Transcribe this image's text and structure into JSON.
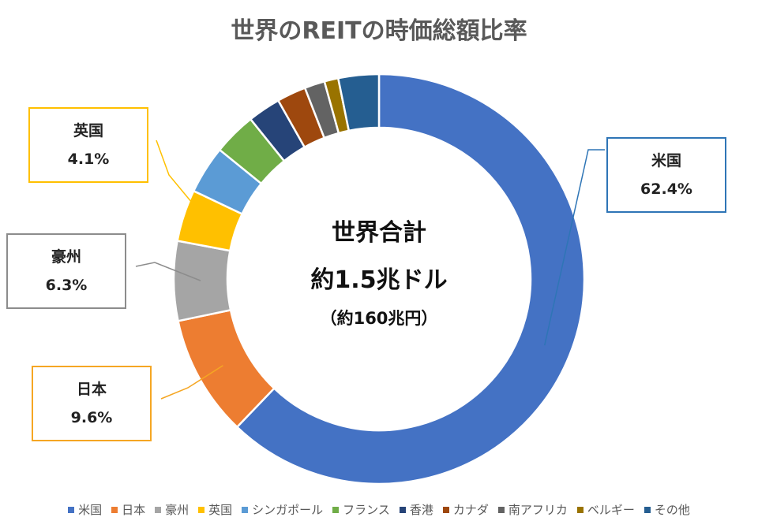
{
  "chart_data": {
    "type": "pie",
    "donut": true,
    "title": "世界のREITの時価総額比率",
    "center_text": {
      "line1": "世界合計",
      "line2": "約1.5兆ドル",
      "line3": "（約160兆円）"
    },
    "slices": [
      {
        "name": "米国",
        "value": 62.4,
        "color": "#4472C4",
        "label": "62.4%"
      },
      {
        "name": "日本",
        "value": 9.6,
        "color": "#ED7D31",
        "label": "9.6%"
      },
      {
        "name": "豪州",
        "value": 6.3,
        "color": "#A5A5A5",
        "label": "6.3%"
      },
      {
        "name": "英国",
        "value": 4.1,
        "color": "#FFC000",
        "label": "4.1%"
      },
      {
        "name": "シンガポール",
        "value": 3.8,
        "color": "#5B9BD5"
      },
      {
        "name": "フランス",
        "value": 3.4,
        "color": "#70AD47"
      },
      {
        "name": "香港",
        "value": 2.6,
        "color": "#264478"
      },
      {
        "name": "カナダ",
        "value": 2.3,
        "color": "#9E480E"
      },
      {
        "name": "南アフリカ",
        "value": 1.6,
        "color": "#636363"
      },
      {
        "name": "ベルギー",
        "value": 1.1,
        "color": "#997300"
      },
      {
        "name": "その他",
        "value": 3.2,
        "color": "#255E91"
      }
    ],
    "legend_position": "bottom"
  }
}
